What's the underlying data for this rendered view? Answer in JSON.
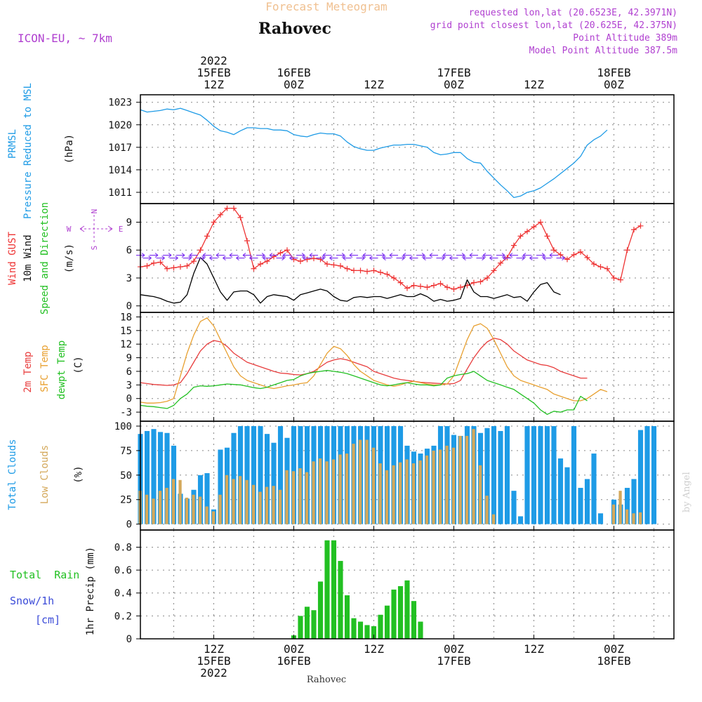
{
  "header": {
    "product": "Forecast Meteogram",
    "location": "Rahovec",
    "model": "ICON-EU, ~ 7km",
    "requested": "requested lon,lat (20.6523E, 42.3971N)",
    "gridpoint": "grid point closest lon,lat (20.625E, 42.375N)",
    "point_alt": "Point Altitude 389m",
    "model_alt": "Model Point Altitude 387.5m"
  },
  "footer": {
    "location": "Rahovec",
    "credit": "by Angel"
  },
  "time_axis": {
    "top_ticks": [
      {
        "line1": "2022",
        "line2": "15FEB",
        "line3": "12Z"
      },
      {
        "line1": "",
        "line2": "16FEB",
        "line3": "00Z"
      },
      {
        "line1": "",
        "line2": "",
        "line3": "12Z"
      },
      {
        "line1": "",
        "line2": "17FEB",
        "line3": "00Z"
      },
      {
        "line1": "",
        "line2": "",
        "line3": "12Z"
      },
      {
        "line1": "",
        "line2": "18FEB",
        "line3": "00Z"
      }
    ],
    "bottom_ticks": [
      {
        "line1": "12Z",
        "line2": "15FEB",
        "line3": "2022"
      },
      {
        "line1": "00Z",
        "line2": "16FEB",
        "line3": ""
      },
      {
        "line1": "12Z",
        "line2": "",
        "line3": ""
      },
      {
        "line1": "00Z",
        "line2": "17FEB",
        "line3": ""
      },
      {
        "line1": "12Z",
        "line2": "",
        "line3": ""
      },
      {
        "line1": "00Z",
        "line2": "18FEB",
        "line3": ""
      }
    ]
  },
  "panels": {
    "pressure": {
      "labels": [
        "PRMSL",
        "Pressure Reduced to MSL"
      ],
      "unit": "(hPa)"
    },
    "wind": {
      "labels": [
        "Wind GUST",
        "10m Wind",
        "Speed and Direction"
      ],
      "unit": "(m/s)",
      "compass": {
        "n": "N",
        "s": "S",
        "w": "W",
        "e": "E"
      }
    },
    "temp": {
      "labels": [
        "2m Temp",
        "SFC Temp",
        "dewpt Temp"
      ],
      "unit": "(C)"
    },
    "clouds": {
      "labels": [
        "Total Clouds",
        "Low Clouds"
      ],
      "unit": "(%)"
    },
    "precip": {
      "labels": [
        "Total  Rain",
        "Snow/1h",
        "[cm]"
      ],
      "unit": "1hr Precip (mm)"
    }
  },
  "colors": {
    "pressure": "#1e9be6",
    "gust": "#ee3333",
    "wind": "#000000",
    "arrows": "#7b2ff0",
    "t2m": "#e83c3c",
    "tsfc": "#e8a030",
    "dewpt": "#22c022",
    "total_clouds": "#1e9be6",
    "low_clouds": "#d4a85a",
    "rain": "#22c022",
    "snow": "#3b4bd8",
    "title_orange": "#f0c090",
    "info_purple": "#b040d0"
  },
  "chart_data": [
    {
      "type": "line",
      "title": "PRMSL Pressure Reduced to MSL",
      "ylabel": "(hPa)",
      "ylim": [
        1009.5,
        1024
      ],
      "yticks": [
        1011,
        1014,
        1017,
        1020,
        1023
      ],
      "x_start": "2022-02-15 01Z",
      "x_step_hours": 1,
      "series": [
        {
          "name": "PRMSL",
          "values": [
            1022.0,
            1021.7,
            1021.8,
            1021.9,
            1022.1,
            1022.0,
            1022.2,
            1021.9,
            1021.6,
            1021.3,
            1020.6,
            1019.8,
            1019.2,
            1019.0,
            1018.7,
            1019.2,
            1019.6,
            1019.6,
            1019.5,
            1019.5,
            1019.3,
            1019.3,
            1019.2,
            1018.7,
            1018.5,
            1018.4,
            1018.7,
            1018.9,
            1018.8,
            1018.8,
            1018.5,
            1017.7,
            1017.1,
            1016.8,
            1016.6,
            1016.6,
            1016.9,
            1017.1,
            1017.3,
            1017.3,
            1017.4,
            1017.4,
            1017.2,
            1017.0,
            1016.3,
            1016.0,
            1016.1,
            1016.3,
            1016.3,
            1015.5,
            1015.0,
            1014.9,
            1013.8,
            1012.9,
            1012.0,
            1011.2,
            1010.3,
            1010.5,
            1011.0,
            1011.2,
            1011.6,
            1012.2,
            1012.8,
            1013.5,
            1014.2,
            1014.9,
            1015.8,
            1017.3,
            1018.0,
            1018.5,
            1019.3
          ]
        }
      ]
    },
    {
      "type": "line",
      "title": "Wind GUST / 10m Wind Speed and Direction",
      "ylabel": "(m/s)",
      "ylim": [
        -0.7,
        11
      ],
      "yticks": [
        0,
        3,
        6,
        9
      ],
      "x_start": "2022-02-15 01Z",
      "x_step_hours": 1,
      "series": [
        {
          "name": "Wind GUST",
          "values": [
            4.2,
            4.3,
            4.6,
            4.7,
            4.0,
            4.1,
            4.2,
            4.3,
            4.8,
            6.0,
            7.5,
            9.0,
            9.8,
            10.5,
            10.5,
            9.5,
            7.0,
            4.0,
            4.5,
            4.8,
            5.3,
            5.7,
            6.0,
            5.0,
            4.8,
            5.0,
            5.1,
            5.0,
            4.5,
            4.4,
            4.3,
            4.0,
            3.8,
            3.8,
            3.7,
            3.8,
            3.6,
            3.4,
            3.0,
            2.5,
            1.9,
            2.2,
            2.1,
            2.0,
            2.2,
            2.4,
            2.0,
            1.8,
            2.0,
            2.2,
            2.5,
            2.6,
            3.0,
            3.8,
            4.6,
            5.2,
            6.5,
            7.5,
            8.0,
            8.5,
            9.0,
            7.5,
            6.0,
            5.5,
            5.0,
            5.5,
            5.8,
            5.2,
            4.5,
            4.2,
            4.0,
            3.0,
            2.8,
            6.0,
            8.2,
            8.6
          ]
        },
        {
          "name": "10m Wind",
          "values": [
            1.2,
            1.1,
            1.0,
            0.8,
            0.5,
            0.3,
            0.4,
            1.2,
            3.5,
            5.2,
            4.5,
            3.0,
            1.5,
            0.6,
            1.5,
            1.6,
            1.6,
            1.2,
            0.3,
            1.0,
            1.2,
            1.1,
            1.0,
            0.6,
            1.2,
            1.4,
            1.6,
            1.8,
            1.6,
            1.0,
            0.6,
            0.5,
            0.9,
            1.0,
            0.9,
            1.0,
            1.0,
            0.8,
            1.0,
            1.2,
            1.0,
            1.0,
            1.3,
            1.0,
            0.5,
            0.7,
            0.5,
            0.6,
            0.8,
            2.8,
            1.5,
            1.0,
            1.0,
            0.8,
            1.0,
            1.2,
            0.9,
            1.0,
            0.5,
            1.5,
            2.3,
            2.5,
            1.5,
            1.2
          ]
        }
      ]
    },
    {
      "type": "line",
      "title": "2m Temp / SFC Temp / dewpt Temp",
      "ylabel": "(C)",
      "ylim": [
        -5,
        19
      ],
      "yticks": [
        -3,
        0,
        3,
        6,
        9,
        12,
        15,
        18
      ],
      "x_start": "2022-02-15 01Z",
      "x_step_hours": 1,
      "series": [
        {
          "name": "2m Temp",
          "values": [
            3.5,
            3.3,
            3.1,
            3.0,
            2.9,
            3.0,
            3.5,
            5.5,
            8.0,
            10.5,
            12.0,
            12.8,
            12.5,
            11.5,
            10.0,
            9.0,
            8.0,
            7.5,
            7.0,
            6.5,
            6.0,
            5.6,
            5.5,
            5.3,
            5.2,
            5.5,
            6.0,
            7.0,
            8.0,
            8.5,
            8.8,
            8.5,
            8.0,
            7.5,
            7.0,
            6.0,
            5.5,
            5.0,
            4.5,
            4.2,
            4.0,
            3.8,
            3.6,
            3.5,
            3.4,
            3.3,
            3.2,
            3.3,
            4.0,
            6.5,
            9.0,
            11.0,
            12.5,
            13.3,
            13.0,
            12.0,
            10.5,
            9.5,
            8.5,
            8.0,
            7.5,
            7.3,
            6.8,
            6.0,
            5.5,
            5.0,
            4.5,
            4.5
          ]
        },
        {
          "name": "SFC Temp",
          "values": [
            -0.8,
            -1.0,
            -1.0,
            -0.9,
            -0.6,
            0.0,
            5.0,
            10.0,
            14.0,
            17.0,
            17.8,
            16.0,
            13.0,
            10.0,
            7.0,
            5.0,
            4.0,
            3.5,
            3.0,
            2.5,
            2.2,
            2.5,
            2.8,
            3.0,
            3.3,
            3.5,
            5.0,
            7.5,
            10.0,
            11.5,
            11.0,
            9.5,
            7.5,
            6.0,
            5.0,
            4.0,
            3.5,
            3.0,
            2.7,
            3.0,
            3.5,
            3.8,
            3.5,
            3.2,
            3.0,
            3.0,
            3.2,
            5.0,
            9.0,
            13.0,
            16.0,
            16.5,
            15.5,
            13.0,
            10.0,
            7.0,
            5.0,
            4.0,
            3.5,
            3.0,
            2.5,
            2.0,
            1.0,
            0.5,
            0.0,
            -0.5,
            -0.5,
            0.0,
            1.0,
            2.0,
            1.5
          ]
        },
        {
          "name": "dewpt Temp",
          "values": [
            -1.5,
            -1.7,
            -1.8,
            -2.0,
            -2.2,
            -1.5,
            0.0,
            1.0,
            2.5,
            2.8,
            2.7,
            2.8,
            3.0,
            3.2,
            3.1,
            3.0,
            2.7,
            2.4,
            2.2,
            2.5,
            3.0,
            3.5,
            4.0,
            4.2,
            5.0,
            5.5,
            5.8,
            6.0,
            6.2,
            6.0,
            5.8,
            5.5,
            5.0,
            4.5,
            4.0,
            3.5,
            3.0,
            2.8,
            3.0,
            3.3,
            3.5,
            3.2,
            3.0,
            3.0,
            2.8,
            3.0,
            4.5,
            5.0,
            5.3,
            5.5,
            6.0,
            5.0,
            4.0,
            3.5,
            3.0,
            2.5,
            2.0,
            1.0,
            0.0,
            -1.0,
            -2.5,
            -3.5,
            -2.8,
            -3.0,
            -2.5,
            -2.5,
            0.5,
            -0.5
          ]
        }
      ]
    },
    {
      "type": "bar",
      "title": "Total Clouds / Low Clouds",
      "ylabel": "(%)",
      "ylim": [
        -6,
        105
      ],
      "yticks": [
        0,
        25,
        50,
        75,
        100
      ],
      "x_start": "2022-02-15 01Z",
      "x_step_hours": 1,
      "series": [
        {
          "name": "Total Clouds",
          "values": [
            92,
            95,
            97,
            94,
            93,
            80,
            31,
            26,
            35,
            50,
            52,
            15,
            76,
            78,
            93,
            100,
            100,
            100,
            100,
            92,
            83,
            100,
            88,
            100,
            100,
            100,
            100,
            100,
            100,
            100,
            100,
            100,
            100,
            100,
            100,
            100,
            100,
            100,
            100,
            100,
            80,
            74,
            72,
            77,
            80,
            100,
            100,
            91,
            90,
            100,
            100,
            93,
            98,
            100,
            95,
            100,
            34,
            8,
            100,
            100,
            100,
            100,
            100,
            67,
            58,
            100,
            37,
            46,
            72,
            11,
            0,
            25,
            20,
            37,
            46,
            96,
            100,
            100
          ]
        },
        {
          "name": "Low Clouds",
          "values": [
            34,
            30,
            26,
            34,
            37,
            46,
            45,
            27,
            30,
            28,
            18,
            13,
            30,
            50,
            46,
            49,
            45,
            40,
            33,
            38,
            39,
            35,
            55,
            54,
            57,
            53,
            64,
            67,
            64,
            66,
            71,
            72,
            82,
            86,
            86,
            78,
            62,
            55,
            60,
            63,
            66,
            62,
            65,
            70,
            75,
            76,
            80,
            78,
            90,
            90,
            97,
            60,
            29,
            10,
            0,
            0,
            0,
            0,
            0,
            0,
            0,
            0,
            0,
            0,
            0,
            0,
            0,
            0,
            0,
            0,
            0,
            20,
            34,
            15,
            11,
            12
          ]
        }
      ]
    },
    {
      "type": "bar",
      "title": "Total Rain / Snow/1h",
      "ylabel": "1hr Precip (mm)",
      "ylim": [
        0,
        0.95
      ],
      "yticks": [
        0,
        0.2,
        0.4,
        0.6,
        0.8
      ],
      "x_start": "2022-02-15 01Z",
      "x_step_hours": 1,
      "series": [
        {
          "name": "Total Rain",
          "values": [
            0,
            0,
            0,
            0,
            0,
            0,
            0,
            0,
            0,
            0,
            0,
            0,
            0,
            0,
            0,
            0,
            0,
            0,
            0,
            0,
            0,
            0,
            0,
            0.03,
            0.2,
            0.28,
            0.25,
            0.5,
            0.86,
            0.86,
            0.68,
            0.38,
            0.18,
            0.15,
            0.12,
            0.11,
            0.21,
            0.29,
            0.43,
            0.46,
            0.51,
            0.33,
            0.15,
            0,
            0,
            0,
            0,
            0,
            0,
            0,
            0,
            0,
            0,
            0,
            0,
            0,
            0,
            0,
            0,
            0,
            0,
            0,
            0,
            0,
            0,
            0,
            0,
            0,
            0,
            0,
            0,
            0,
            0,
            0,
            0,
            0,
            0
          ]
        },
        {
          "name": "Snow/1h",
          "values": [
            0,
            0,
            0,
            0,
            0,
            0,
            0,
            0,
            0,
            0,
            0,
            0,
            0,
            0,
            0,
            0,
            0,
            0,
            0,
            0,
            0,
            0,
            0,
            0,
            0,
            0,
            0,
            0,
            0,
            0,
            0,
            0,
            0,
            0,
            0,
            0,
            0,
            0,
            0,
            0,
            0,
            0,
            0,
            0,
            0,
            0,
            0,
            0,
            0,
            0,
            0,
            0,
            0,
            0,
            0,
            0,
            0,
            0,
            0,
            0,
            0,
            0,
            0,
            0,
            0,
            0,
            0,
            0,
            0,
            0,
            0,
            0,
            0,
            0,
            0,
            0,
            0
          ]
        }
      ]
    }
  ]
}
